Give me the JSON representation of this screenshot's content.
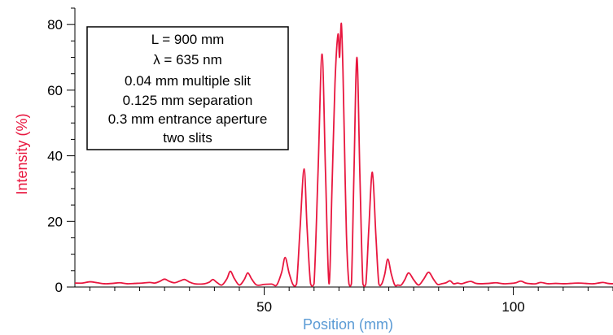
{
  "chart_data": {
    "type": "line",
    "xlabel": "Position (mm)",
    "ylabel": "Intensity (%)",
    "xlim": [
      12,
      120
    ],
    "ylim": [
      0,
      85
    ],
    "x_ticks": [
      "50",
      "100"
    ],
    "y_ticks": [
      "0",
      "20",
      "40",
      "60",
      "80"
    ],
    "x_tick_values": [
      50,
      100
    ],
    "y_tick_values": [
      0,
      20,
      40,
      60,
      80
    ],
    "x_minor_step": 5,
    "y_minor_step": 5,
    "grid": false,
    "legend_placement": "top-left",
    "annotation_lines": [
      "L = 900 mm",
      "λ = 635 nm",
      "0.04 mm multiple slit",
      "0.125 mm separation",
      "0.3 mm entrance aperture",
      "two slits"
    ],
    "series": [
      {
        "color": "#e8173f",
        "x": [
          12,
          13.5,
          15,
          16.5,
          18,
          19.5,
          21,
          22.5,
          24,
          25.5,
          27,
          28,
          29,
          30,
          31,
          32,
          33,
          34,
          35,
          36,
          37,
          38,
          39,
          39.7,
          40.5,
          41.5,
          42.5,
          43.2,
          44,
          45,
          46,
          46.7,
          47.5,
          48.5,
          50,
          51.5,
          52.5,
          53.5,
          54.2,
          55,
          55.8,
          56.5,
          57.2,
          58,
          58.6,
          59.3,
          60,
          60.8,
          61.6,
          62.3,
          63,
          63.6,
          64.2,
          64.8,
          65.1,
          65.3,
          65.5,
          65.8,
          66.1,
          66.5,
          67,
          67.5,
          68,
          68.6,
          69.2,
          69.8,
          70.4,
          71,
          71.7,
          72.4,
          73,
          73.6,
          74.2,
          74.8,
          75.5,
          76.2,
          76.8,
          77.5,
          78.2,
          79,
          80,
          81,
          82,
          83,
          84,
          84.8,
          85.6,
          86.5,
          87.3,
          88,
          88.8,
          89.6,
          90.5,
          91.5,
          92.5,
          93.5,
          95,
          96.5,
          98,
          99.5,
          100.5,
          101.5,
          102.5,
          103.5,
          104.5,
          105.5,
          107,
          108.5,
          110,
          111.5,
          113,
          114.5,
          116,
          117,
          118,
          119,
          120
        ],
        "y": [
          1.2,
          1.2,
          1.6,
          1.3,
          1.0,
          1.1,
          1.3,
          1.0,
          1.1,
          1.2,
          1.4,
          1.2,
          1.7,
          2.4,
          1.7,
          1.3,
          1.8,
          2.3,
          1.5,
          1.0,
          0.9,
          1.0,
          1.5,
          2.3,
          1.4,
          0.6,
          2.5,
          4.8,
          2.6,
          0.6,
          2.3,
          4.3,
          2.4,
          0.6,
          0.8,
          0.9,
          0.6,
          4.5,
          9.0,
          4.2,
          0.7,
          1.0,
          18.0,
          36.0,
          18.0,
          1.0,
          1.0,
          35.0,
          71.0,
          35.0,
          1.0,
          30.0,
          62.0,
          77.0,
          70.0,
          76.0,
          80.0,
          66.0,
          44.0,
          16.0,
          1.0,
          1.0,
          34.0,
          70.0,
          34.0,
          1.0,
          1.0,
          18.0,
          35.0,
          16.0,
          1.0,
          1.0,
          4.0,
          8.5,
          4.0,
          0.6,
          0.6,
          0.6,
          2.2,
          4.3,
          2.2,
          0.6,
          2.4,
          4.5,
          2.3,
          0.8,
          1.0,
          1.3,
          1.9,
          1.0,
          1.2,
          1.0,
          1.4,
          1.7,
          1.1,
          1.0,
          1.1,
          1.3,
          1.0,
          1.1,
          1.3,
          1.8,
          1.2,
          1.0,
          1.0,
          1.4,
          1.0,
          1.1,
          1.0,
          1.1,
          1.2,
          1.1,
          1.0,
          1.2,
          1.4,
          1.1,
          1.0
        ]
      }
    ],
    "colors": {
      "series": "#e8173f",
      "ylabel": "#e8173f",
      "xlabel": "#5b9bd5",
      "axis": "#000000"
    }
  }
}
